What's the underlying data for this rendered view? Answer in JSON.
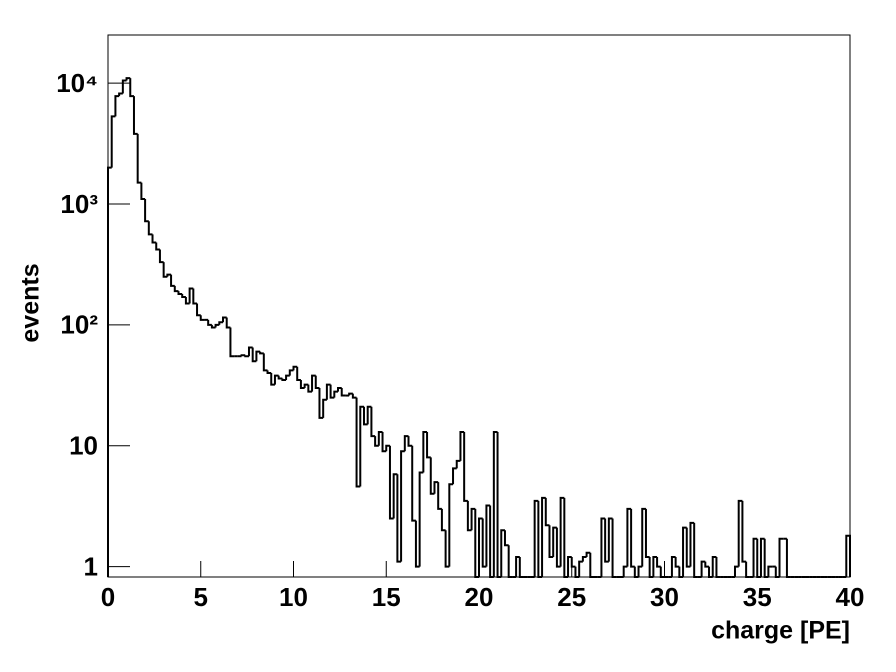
{
  "chart_data": {
    "type": "histogram",
    "xlabel": "charge [PE]",
    "ylabel": "events",
    "bins": [
      0,
      0.2,
      0.4,
      0.6,
      0.8,
      1,
      1.2,
      1.4,
      1.6,
      1.8,
      2,
      2.2,
      2.4,
      2.6,
      2.8,
      3,
      3.2,
      3.4,
      3.6,
      3.8,
      4,
      4.2,
      4.4,
      4.6,
      4.8,
      5,
      5.2,
      5.4,
      5.6,
      5.8,
      6,
      6.2,
      6.4,
      6.6,
      6.8,
      7,
      7.2,
      7.4,
      7.6,
      7.8,
      8,
      8.2,
      8.4,
      8.6,
      8.8,
      9,
      9.2,
      9.4,
      9.6,
      9.8,
      10,
      10.2,
      10.4,
      10.6,
      10.8,
      11,
      11.2,
      11.4,
      11.6,
      11.8,
      12,
      12.2,
      12.4,
      12.6,
      12.8,
      13,
      13.2,
      13.4,
      13.6,
      13.8,
      14,
      14.2,
      14.4,
      14.6,
      14.8,
      15,
      15.2,
      15.4,
      15.6,
      15.8,
      16,
      16.2,
      16.4,
      16.6,
      16.8,
      17,
      17.2,
      17.4,
      17.6,
      17.8,
      18,
      18.2,
      18.4,
      18.6,
      18.8,
      19,
      19.2,
      19.4,
      19.6,
      19.8,
      20,
      20.2,
      20.4,
      20.6,
      20.8,
      21,
      21.2,
      21.4,
      21.6,
      21.8,
      22,
      22.2,
      22.4,
      22.6,
      22.8,
      23,
      23.2,
      23.4,
      23.6,
      23.8,
      24,
      24.2,
      24.4,
      24.6,
      24.8,
      25,
      25.2,
      25.4,
      25.6,
      25.8,
      26,
      26.2,
      26.4,
      26.6,
      26.8,
      27,
      27.2,
      27.4,
      27.6,
      27.8,
      28,
      28.2,
      28.4,
      28.6,
      28.8,
      29,
      29.2,
      29.4,
      29.6,
      29.8,
      30,
      30.2,
      30.4,
      30.6,
      30.8,
      31,
      31.2,
      31.4,
      31.6,
      31.8,
      32,
      32.2,
      32.4,
      32.6,
      32.8,
      33,
      33.2,
      33.4,
      33.6,
      33.8,
      34,
      34.2,
      34.4,
      34.6,
      34.8,
      35,
      35.2,
      35.4,
      35.6,
      35.8,
      36,
      36.2,
      36.4,
      36.6,
      36.8,
      37,
      37.2,
      37.4,
      37.6,
      37.8,
      38,
      38.2,
      38.4,
      38.6,
      38.8,
      39,
      39.2,
      39.4,
      39.6,
      39.8,
      40
    ],
    "values": [
      2000,
      5300,
      7800,
      8200,
      10500,
      11000,
      7800,
      3800,
      1500,
      1100,
      720,
      560,
      480,
      420,
      330,
      250,
      260,
      210,
      190,
      180,
      170,
      150,
      200,
      150,
      120,
      110,
      110,
      100,
      95,
      100,
      105,
      115,
      95,
      55,
      55,
      55,
      56,
      55,
      65,
      50,
      60,
      58,
      42,
      40,
      32,
      38,
      36,
      35,
      38,
      42,
      45,
      35,
      30,
      32,
      28,
      38,
      30,
      17,
      24,
      32,
      25,
      28,
      30,
      26,
      26,
      27,
      25,
      4.6,
      21,
      15,
      21,
      12,
      10,
      13,
      9,
      10,
      2.5,
      5.8,
      1.1,
      9,
      12,
      10,
      2.4,
      1,
      6,
      13,
      8,
      4,
      5,
      3,
      2,
      1,
      4.8,
      6.5,
      7.5,
      13,
      3.5,
      2,
      3,
      0,
      2.5,
      1,
      3.2,
      0,
      13,
      0,
      2,
      1.5,
      0,
      0,
      1.2,
      0,
      0,
      0,
      0,
      3.5,
      0,
      3.7,
      2.2,
      1.2,
      2.1,
      1,
      3.7,
      0,
      1.2,
      1,
      0,
      1.1,
      1.2,
      1.3,
      0,
      0,
      0,
      2.5,
      1.1,
      2.5,
      0,
      0,
      0,
      1,
      3,
      1,
      0,
      1,
      3,
      1.2,
      0,
      1.2,
      1,
      0,
      0,
      0,
      1.2,
      1,
      0,
      2.1,
      1,
      2.3,
      0,
      0,
      1.1,
      1,
      0,
      1.2,
      0,
      0,
      0,
      0,
      0,
      1,
      3.5,
      1.1,
      0,
      0,
      1.7,
      0,
      1.7,
      0,
      1,
      1,
      0,
      1.7,
      1.7,
      0,
      0,
      0,
      0,
      0,
      0,
      0,
      0,
      0,
      0,
      0,
      0,
      0,
      0,
      0,
      0,
      1.8
    ],
    "color": "#000000",
    "xlim": [
      0,
      40
    ],
    "xticks": [
      0,
      5,
      10,
      15,
      20,
      25,
      30,
      35,
      40
    ],
    "ylim": [
      0.82,
      25000
    ],
    "log_y": true,
    "yticks": [
      1,
      10,
      {
        "value": 100,
        "label": "10²"
      },
      {
        "value": 1000,
        "label": "10³"
      },
      {
        "value": 10000,
        "label": "10⁴"
      }
    ]
  }
}
